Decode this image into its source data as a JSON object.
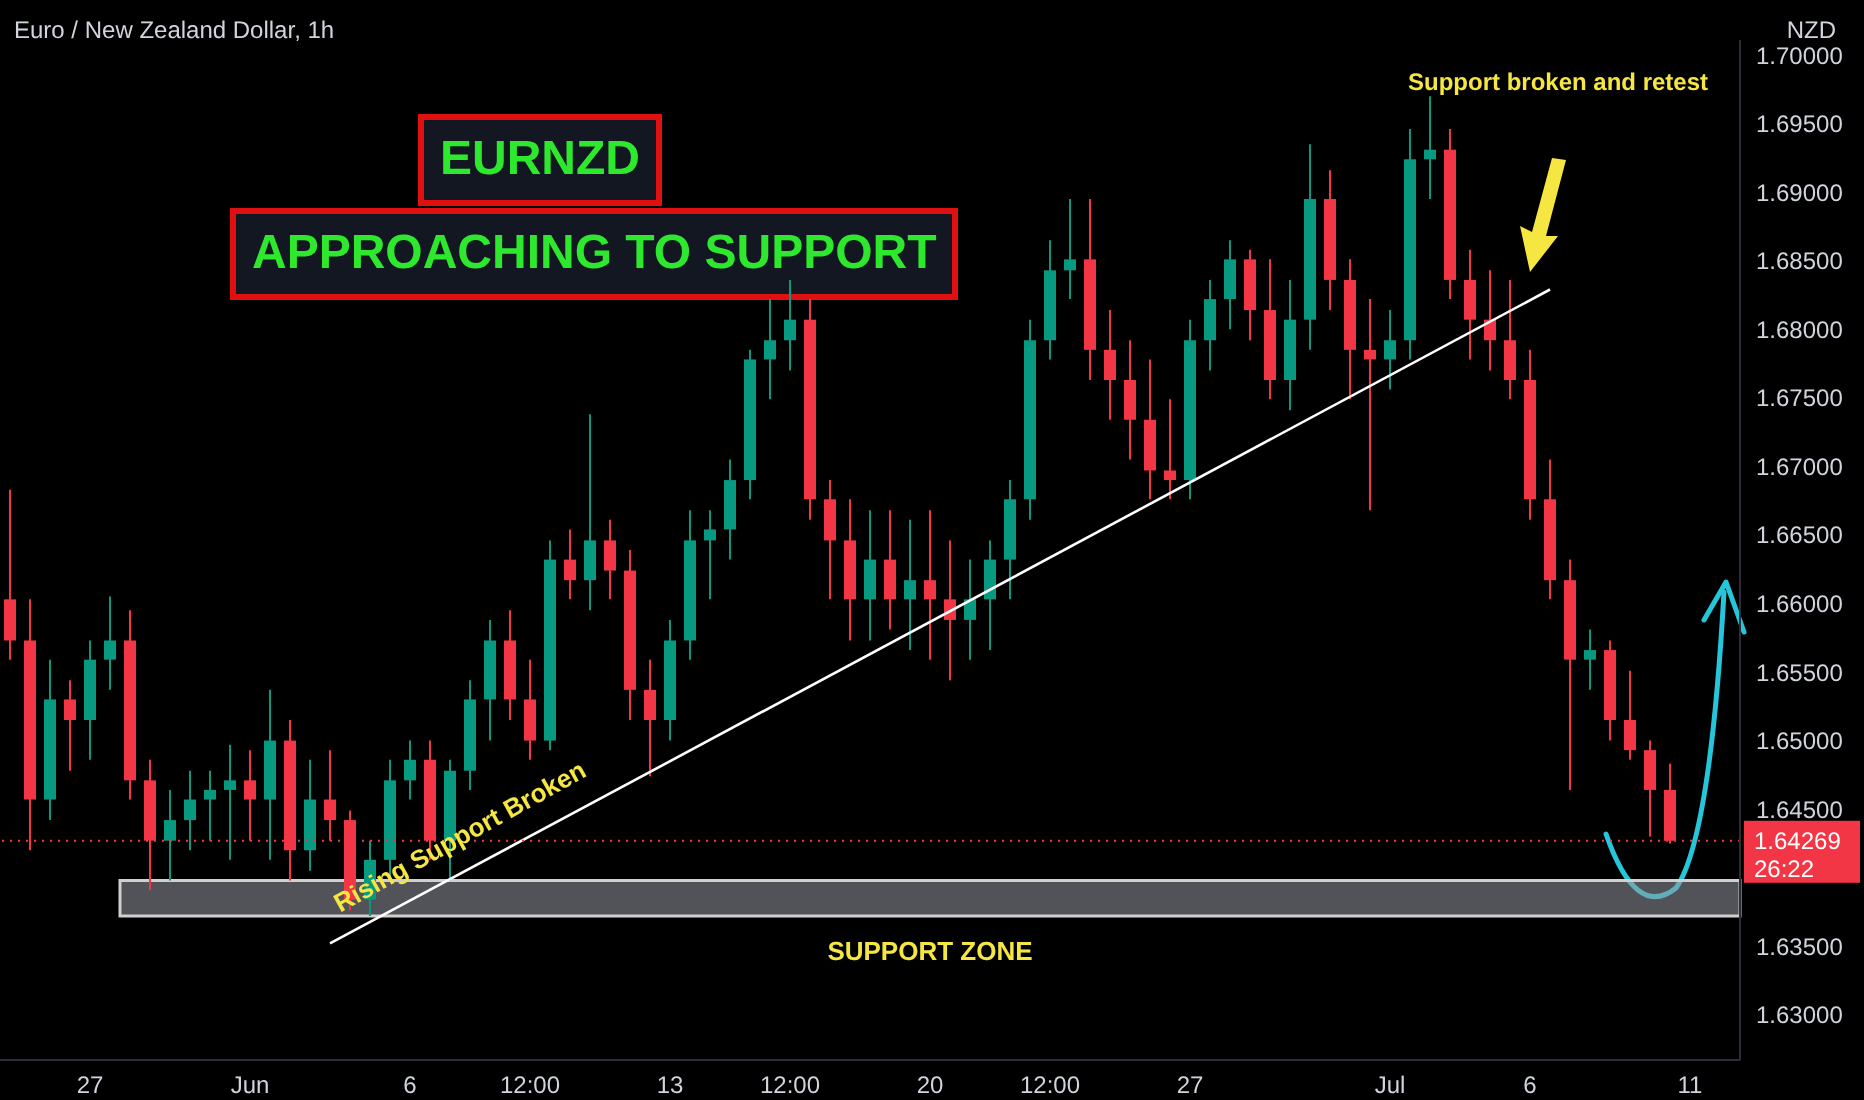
{
  "chart_data": {
    "type": "candlestick",
    "title": "Euro / New Zealand Dollar, 1h",
    "ylabel": "NZD",
    "categories": [
      null,
      null,
      null,
      null,
      "27",
      null,
      null,
      null,
      null,
      null,
      null,
      null,
      "Jun",
      null,
      null,
      null,
      null,
      null,
      null,
      null,
      "6",
      null,
      null,
      null,
      null,
      null,
      "12:00",
      null,
      null,
      null,
      null,
      null,
      null,
      "13",
      null,
      null,
      null,
      null,
      null,
      "12:00",
      null,
      null,
      null,
      null,
      null,
      null,
      "20",
      null,
      null,
      null,
      null,
      null,
      "12:00",
      null,
      null,
      null,
      null,
      null,
      null,
      "27",
      null,
      null,
      null,
      null,
      null,
      null,
      null,
      null,
      null,
      "Jul",
      null,
      null,
      null,
      null,
      null,
      null,
      "6",
      null,
      null,
      null,
      null,
      null,
      null,
      null,
      "11",
      null,
      null
    ],
    "ohlc": [
      [
        1.6603,
        1.6683,
        1.6559,
        1.6573
      ],
      [
        1.6573,
        1.6603,
        1.642,
        1.6457
      ],
      [
        1.6457,
        1.6559,
        1.6442,
        1.653
      ],
      [
        1.653,
        1.6544,
        1.6478,
        1.6515
      ],
      [
        1.6515,
        1.6573,
        1.6486,
        1.6559
      ],
      [
        1.6559,
        1.6605,
        1.6537,
        1.6573
      ],
      [
        1.6573,
        1.6595,
        1.6457,
        1.6471
      ],
      [
        1.6471,
        1.6486,
        1.6391,
        1.6427
      ],
      [
        1.6427,
        1.6464,
        1.6398,
        1.6442
      ],
      [
        1.6442,
        1.6478,
        1.642,
        1.6457
      ],
      [
        1.6457,
        1.6478,
        1.6427,
        1.6464
      ],
      [
        1.6464,
        1.6497,
        1.6413,
        1.6471
      ],
      [
        1.6471,
        1.6493,
        1.6427,
        1.6457
      ],
      [
        1.6457,
        1.6537,
        1.6413,
        1.65
      ],
      [
        1.65,
        1.6515,
        1.6398,
        1.642
      ],
      [
        1.642,
        1.6486,
        1.6405,
        1.6457
      ],
      [
        1.6457,
        1.6493,
        1.6427,
        1.6442
      ],
      [
        1.6442,
        1.6449,
        1.6376,
        1.6384
      ],
      [
        1.6384,
        1.6427,
        1.6372,
        1.6413
      ],
      [
        1.6413,
        1.6486,
        1.6398,
        1.6471
      ],
      [
        1.6471,
        1.65,
        1.6457,
        1.6486
      ],
      [
        1.6486,
        1.65,
        1.6413,
        1.6427
      ],
      [
        1.6427,
        1.6486,
        1.6398,
        1.6478
      ],
      [
        1.6478,
        1.6544,
        1.6464,
        1.653
      ],
      [
        1.653,
        1.6588,
        1.65,
        1.6573
      ],
      [
        1.6573,
        1.6595,
        1.6515,
        1.653
      ],
      [
        1.653,
        1.6559,
        1.6486,
        1.65
      ],
      [
        1.65,
        1.6646,
        1.6493,
        1.6632
      ],
      [
        1.6632,
        1.6654,
        1.6603,
        1.6617
      ],
      [
        1.6617,
        1.6738,
        1.6595,
        1.6646
      ],
      [
        1.6646,
        1.6661,
        1.6603,
        1.6624
      ],
      [
        1.6624,
        1.6639,
        1.6515,
        1.6537
      ],
      [
        1.6537,
        1.6559,
        1.6474,
        1.6515
      ],
      [
        1.6515,
        1.6588,
        1.65,
        1.6573
      ],
      [
        1.6573,
        1.6668,
        1.6559,
        1.6646
      ],
      [
        1.6646,
        1.6668,
        1.6603,
        1.6654
      ],
      [
        1.6654,
        1.6705,
        1.6632,
        1.669
      ],
      [
        1.669,
        1.6785,
        1.6676,
        1.6778
      ],
      [
        1.6778,
        1.6822,
        1.6749,
        1.6792
      ],
      [
        1.6792,
        1.6836,
        1.677,
        1.6807
      ],
      [
        1.6807,
        1.6822,
        1.6661,
        1.6676
      ],
      [
        1.6676,
        1.669,
        1.6603,
        1.6646
      ],
      [
        1.6646,
        1.6676,
        1.6573,
        1.6603
      ],
      [
        1.6603,
        1.6668,
        1.6573,
        1.6632
      ],
      [
        1.6632,
        1.6668,
        1.6581,
        1.6603
      ],
      [
        1.6603,
        1.6661,
        1.6566,
        1.6617
      ],
      [
        1.6617,
        1.6668,
        1.6559,
        1.6603
      ],
      [
        1.6603,
        1.6646,
        1.6544,
        1.6588
      ],
      [
        1.6588,
        1.6632,
        1.6559,
        1.6603
      ],
      [
        1.6603,
        1.6646,
        1.6566,
        1.6632
      ],
      [
        1.6632,
        1.669,
        1.6603,
        1.6676
      ],
      [
        1.6676,
        1.6807,
        1.6661,
        1.6792
      ],
      [
        1.6792,
        1.6865,
        1.6778,
        1.6843
      ],
      [
        1.6843,
        1.6895,
        1.6822,
        1.6851
      ],
      [
        1.6851,
        1.6895,
        1.6763,
        1.6785
      ],
      [
        1.6785,
        1.6814,
        1.6734,
        1.6763
      ],
      [
        1.6763,
        1.6792,
        1.6705,
        1.6734
      ],
      [
        1.6734,
        1.6778,
        1.6676,
        1.6697
      ],
      [
        1.6697,
        1.6749,
        1.6676,
        1.669
      ],
      [
        1.669,
        1.6807,
        1.6676,
        1.6792
      ],
      [
        1.6792,
        1.6836,
        1.677,
        1.6822
      ],
      [
        1.6822,
        1.6865,
        1.68,
        1.6851
      ],
      [
        1.6851,
        1.6858,
        1.6792,
        1.6814
      ],
      [
        1.6814,
        1.6851,
        1.6749,
        1.6763
      ],
      [
        1.6763,
        1.6836,
        1.6741,
        1.6807
      ],
      [
        1.6807,
        1.6935,
        1.6785,
        1.6895
      ],
      [
        1.6895,
        1.6916,
        1.6814,
        1.6836
      ],
      [
        1.6836,
        1.6851,
        1.6749,
        1.6785
      ],
      [
        1.6785,
        1.6822,
        1.6668,
        1.6778
      ],
      [
        1.6778,
        1.6814,
        1.6756,
        1.6792
      ],
      [
        1.6792,
        1.6946,
        1.6778,
        1.6924
      ],
      [
        1.6924,
        1.697,
        1.6895,
        1.6931
      ],
      [
        1.6931,
        1.6946,
        1.6822,
        1.6836
      ],
      [
        1.6836,
        1.6858,
        1.6778,
        1.6807
      ],
      [
        1.6807,
        1.6843,
        1.677,
        1.6792
      ],
      [
        1.6792,
        1.6836,
        1.6749,
        1.6763
      ],
      [
        1.6763,
        1.6785,
        1.6661,
        1.6676
      ],
      [
        1.6676,
        1.6705,
        1.6603,
        1.6617
      ],
      [
        1.6617,
        1.6632,
        1.6464,
        1.6559
      ],
      [
        1.6559,
        1.6581,
        1.6537,
        1.6566
      ],
      [
        1.6566,
        1.6573,
        1.65,
        1.6515
      ],
      [
        1.6515,
        1.6551,
        1.6486,
        1.6493
      ],
      [
        1.6493,
        1.65,
        1.643,
        1.6464
      ],
      [
        1.6464,
        1.6483,
        1.6425,
        1.64269
      ],
      null,
      null,
      null
    ],
    "series": [
      {
        "type": "line",
        "color": "#ffffff",
        "values": [
          null,
          null,
          null,
          null,
          null,
          null,
          null,
          null,
          null,
          null,
          null,
          null,
          null,
          null,
          null,
          null,
          1.6352,
          null,
          null,
          null,
          null,
          null,
          null,
          null,
          null,
          null,
          null,
          null,
          null,
          null,
          null,
          null,
          null,
          null,
          null,
          null,
          null,
          null,
          null,
          null,
          null,
          null,
          null,
          null,
          null,
          null,
          null,
          null,
          null,
          null,
          null,
          null,
          null,
          null,
          null,
          null,
          null,
          null,
          null,
          null,
          null,
          null,
          null,
          null,
          null,
          null,
          null,
          null,
          null,
          null,
          null,
          null,
          null,
          null,
          null,
          null,
          null,
          1.6829,
          null,
          null,
          null,
          null,
          null,
          null,
          null,
          null,
          null
        ]
      }
    ],
    "ylim": [
      1.6267,
      1.7011
    ],
    "yticks": [
      {
        "value": 1.63,
        "label": "1.63000"
      },
      {
        "value": 1.635,
        "label": "1.63500"
      },
      {
        "value": 1.645,
        "label": "1.64500"
      },
      {
        "value": 1.65,
        "label": "1.65000"
      },
      {
        "value": 1.655,
        "label": "1.65500"
      },
      {
        "value": 1.66,
        "label": "1.66000"
      },
      {
        "value": 1.665,
        "label": "1.66500"
      },
      {
        "value": 1.67,
        "label": "1.67000"
      },
      {
        "value": 1.675,
        "label": "1.67500"
      },
      {
        "value": 1.68,
        "label": "1.68000"
      },
      {
        "value": 1.685,
        "label": "1.68500"
      },
      {
        "value": 1.69,
        "label": "1.69000"
      },
      {
        "value": 1.695,
        "label": "1.69500"
      },
      {
        "value": 1.7,
        "label": "1.70000"
      }
    ],
    "ref_lines": [
      {
        "axis": "y",
        "value": 1.64269,
        "label": "1.64269",
        "color": "#f23645",
        "line_style": "dotted"
      }
    ],
    "bands": [
      {
        "axis": "y",
        "from": 1.6372,
        "to": 1.6398,
        "label": "SUPPORT ZONE",
        "color": "#9598a1"
      }
    ],
    "annotations": [
      "EURNZD",
      "APPROACHING TO SUPPORT",
      "Support broken and retest",
      "Rising Support Broken",
      "26:22"
    ]
  }
}
